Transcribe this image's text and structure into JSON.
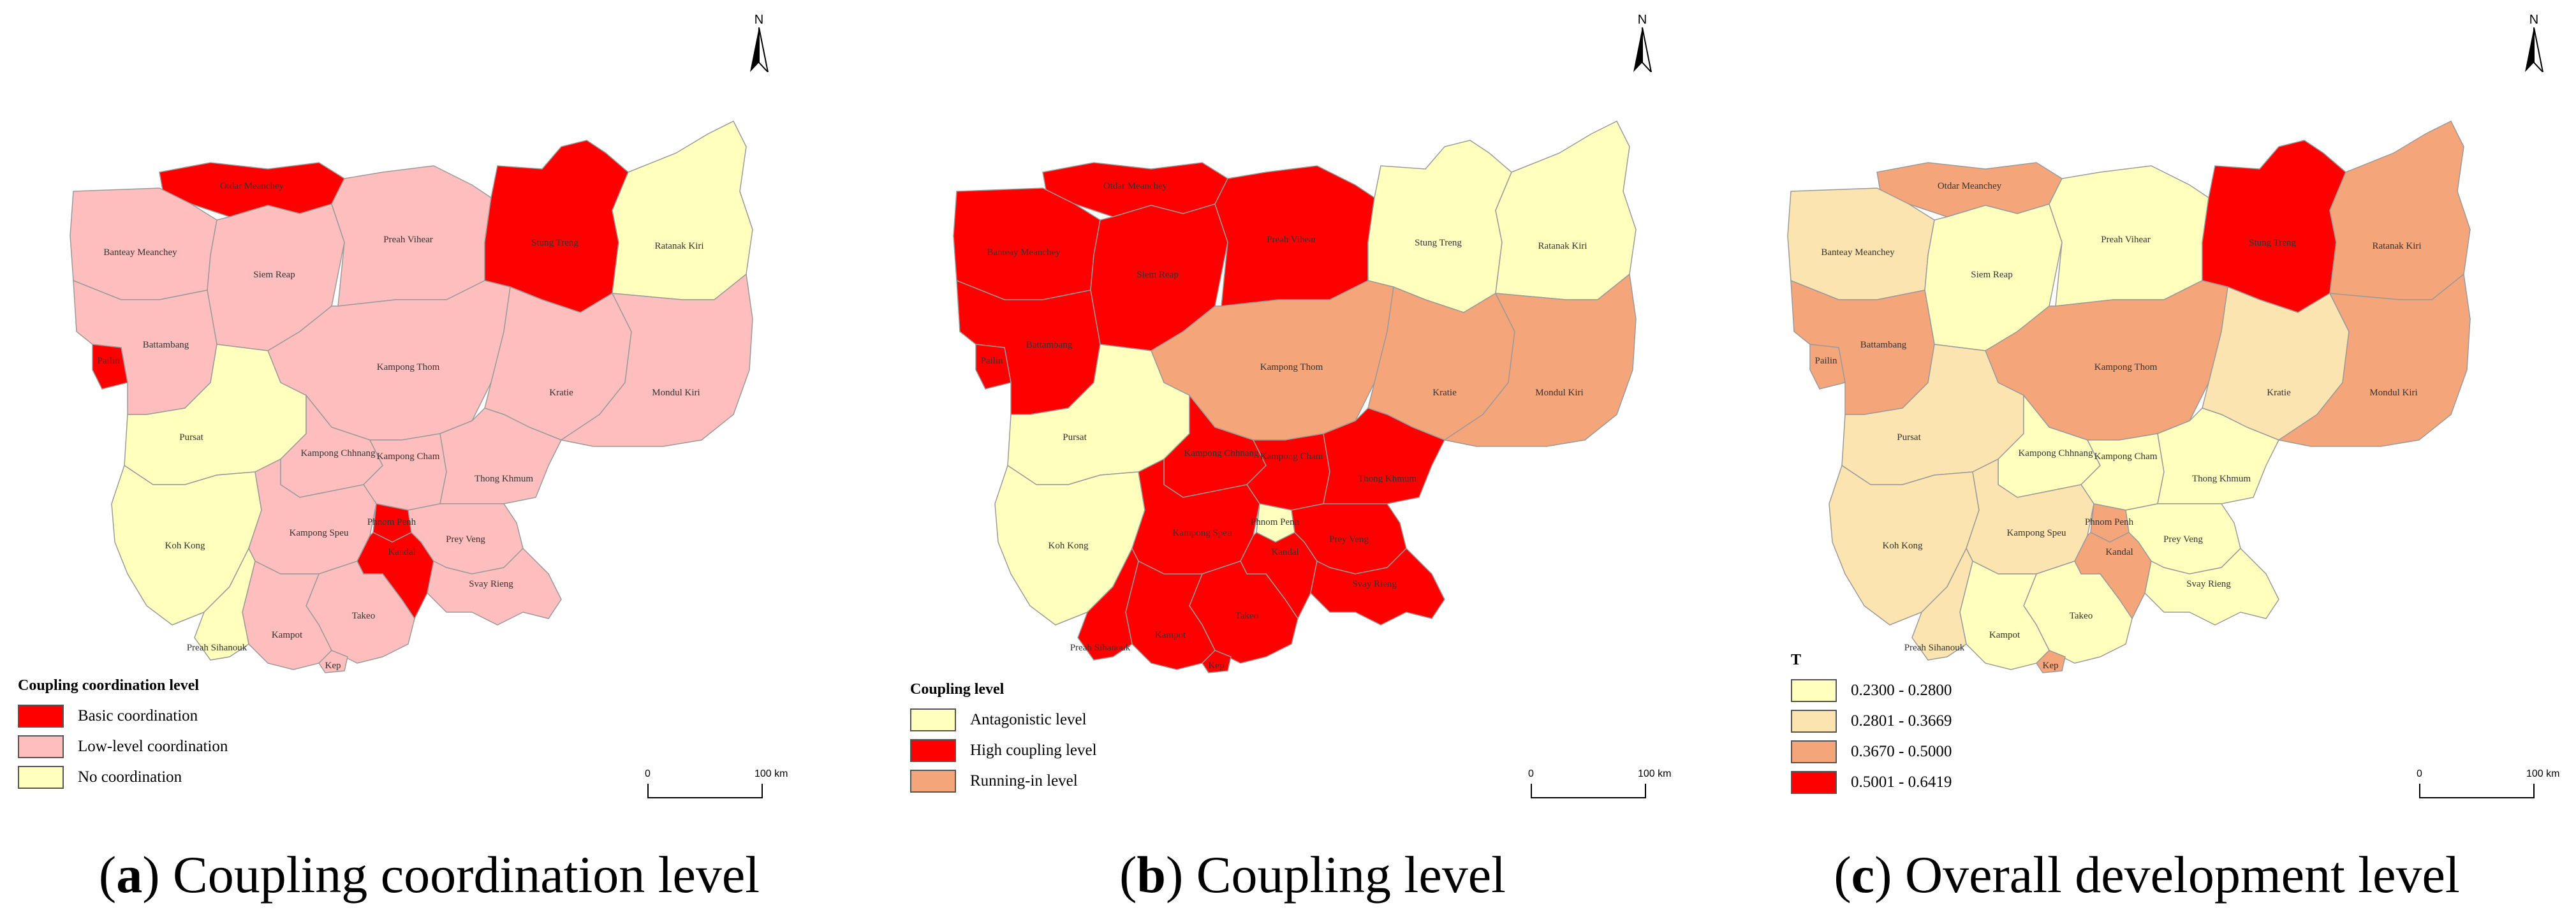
{
  "north_label": "N",
  "scale": {
    "start": "0",
    "end": "100 km"
  },
  "provinces": [
    "Otdar Meanchey",
    "Banteay Meanchey",
    "Siem Reap",
    "Preah Vihear",
    "Stung Treng",
    "Ratanak Kiri",
    "Battambang",
    "Pailin",
    "Kampong Thom",
    "Kratie",
    "Mondul Kiri",
    "Pursat",
    "Kampong Chhnang",
    "Kampong Cham",
    "Thong Khmum",
    "Koh Kong",
    "Kampong Speu",
    "Phnom Penh",
    "Kandal",
    "Prey Veng",
    "Svay Rieng",
    "Takeo",
    "Kampot",
    "Preah Sihanouk",
    "Kep"
  ],
  "panels": [
    {
      "caption_letter": "a",
      "caption_text": "Coupling coordination level",
      "legend_title": "Coupling coordination level",
      "classes": [
        {
          "label": "Basic coordination",
          "color": "#ff0000"
        },
        {
          "label": "Low-level coordination",
          "color": "#ffbebe"
        },
        {
          "label": "No coordination",
          "color": "#ffffbe"
        }
      ],
      "assignments": {
        "Otdar Meanchey": 0,
        "Banteay Meanchey": 1,
        "Siem Reap": 1,
        "Preah Vihear": 1,
        "Stung Treng": 0,
        "Ratanak Kiri": 2,
        "Battambang": 1,
        "Pailin": 0,
        "Kampong Thom": 1,
        "Kratie": 1,
        "Mondul Kiri": 1,
        "Pursat": 2,
        "Kampong Chhnang": 1,
        "Kampong Cham": 1,
        "Thong Khmum": 1,
        "Koh Kong": 2,
        "Kampong Speu": 1,
        "Phnom Penh": 0,
        "Kandal": 0,
        "Prey Veng": 1,
        "Svay Rieng": 1,
        "Takeo": 1,
        "Kampot": 1,
        "Preah Sihanouk": 2,
        "Kep": 1
      }
    },
    {
      "caption_letter": "b",
      "caption_text": "Coupling level",
      "legend_title": "Coupling level",
      "classes": [
        {
          "label": "Antagonistic level",
          "color": "#ffffbe"
        },
        {
          "label": "High coupling level",
          "color": "#ff0000"
        },
        {
          "label": "Running-in level",
          "color": "#f5a57a"
        }
      ],
      "assignments": {
        "Otdar Meanchey": 1,
        "Banteay Meanchey": 1,
        "Siem Reap": 1,
        "Preah Vihear": 1,
        "Stung Treng": 0,
        "Ratanak Kiri": 0,
        "Battambang": 1,
        "Pailin": 1,
        "Kampong Thom": 2,
        "Kratie": 2,
        "Mondul Kiri": 2,
        "Pursat": 0,
        "Kampong Chhnang": 1,
        "Kampong Cham": 1,
        "Thong Khmum": 1,
        "Koh Kong": 0,
        "Kampong Speu": 1,
        "Phnom Penh": 0,
        "Kandal": 1,
        "Prey Veng": 1,
        "Svay Rieng": 1,
        "Takeo": 1,
        "Kampot": 1,
        "Preah Sihanouk": 1,
        "Kep": 1
      }
    },
    {
      "caption_letter": "c",
      "caption_text": "Overall development level",
      "legend_title": "T",
      "classes": [
        {
          "label": "0.2300 - 0.2800",
          "color": "#ffffbe"
        },
        {
          "label": "0.2801 - 0.3669",
          "color": "#fce4b0"
        },
        {
          "label": "0.3670 - 0.5000",
          "color": "#f5a57a"
        },
        {
          "label": "0.5001 - 0.6419",
          "color": "#ff0000"
        }
      ],
      "assignments": {
        "Otdar Meanchey": 2,
        "Banteay Meanchey": 1,
        "Siem Reap": 0,
        "Preah Vihear": 0,
        "Stung Treng": 3,
        "Ratanak Kiri": 2,
        "Battambang": 2,
        "Pailin": 2,
        "Kampong Thom": 2,
        "Kratie": 1,
        "Mondul Kiri": 2,
        "Pursat": 1,
        "Kampong Chhnang": 0,
        "Kampong Cham": 0,
        "Thong Khmum": 0,
        "Koh Kong": 1,
        "Kampong Speu": 1,
        "Phnom Penh": 2,
        "Kandal": 2,
        "Prey Veng": 0,
        "Svay Rieng": 0,
        "Takeo": 0,
        "Kampot": 0,
        "Preah Sihanouk": 1,
        "Kep": 2
      }
    }
  ]
}
